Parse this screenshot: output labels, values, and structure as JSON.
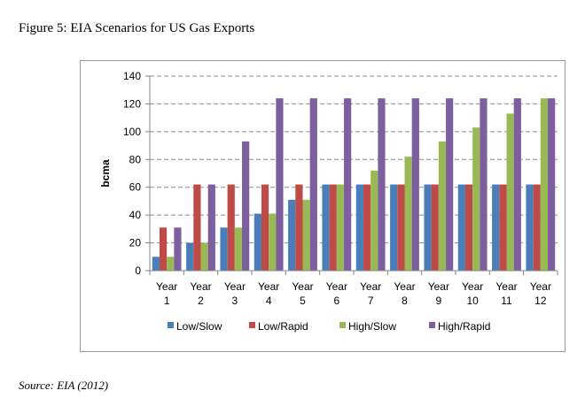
{
  "figure": {
    "title": "Figure 5: EIA Scenarios for US Gas Exports",
    "source": "Source: EIA (2012)"
  },
  "chart_data": {
    "type": "bar",
    "title": "",
    "xlabel": "",
    "ylabel": "bcma",
    "ylim": [
      0,
      140
    ],
    "yticks": [
      0,
      20,
      40,
      60,
      80,
      100,
      120,
      140
    ],
    "grid": true,
    "legend_position": "bottom",
    "categories": [
      [
        "Year",
        "1"
      ],
      [
        "Year",
        "2"
      ],
      [
        "Year",
        "3"
      ],
      [
        "Year",
        "4"
      ],
      [
        "Year",
        "5"
      ],
      [
        "Year",
        "6"
      ],
      [
        "Year",
        "7"
      ],
      [
        "Year",
        "8"
      ],
      [
        "Year",
        "9"
      ],
      [
        "Year",
        "10"
      ],
      [
        "Year",
        "11"
      ],
      [
        "Year",
        "12"
      ]
    ],
    "series": [
      {
        "name": "Low/Slow",
        "color": "#4a7ebb",
        "values": [
          10,
          20,
          31,
          41,
          51,
          62,
          62,
          62,
          62,
          62,
          62,
          62
        ]
      },
      {
        "name": "Low/Rapid",
        "color": "#be4b48",
        "values": [
          31,
          62,
          62,
          62,
          62,
          62,
          62,
          62,
          62,
          62,
          62,
          62
        ]
      },
      {
        "name": "High/Slow",
        "color": "#98b954",
        "values": [
          10,
          20,
          31,
          41,
          51,
          62,
          72,
          82,
          93,
          103,
          113,
          124
        ]
      },
      {
        "name": "High/Rapid",
        "color": "#7d5fa0",
        "values": [
          31,
          62,
          93,
          124,
          124,
          124,
          124,
          124,
          124,
          124,
          124,
          124
        ]
      }
    ]
  }
}
